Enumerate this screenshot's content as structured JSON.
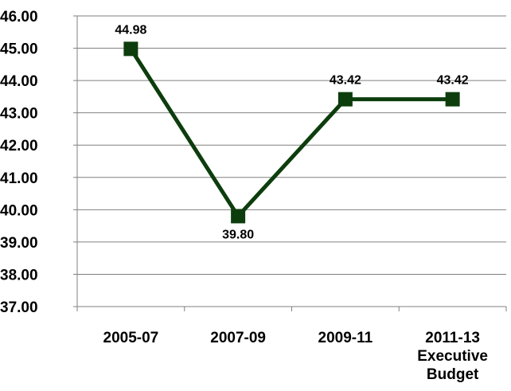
{
  "chart_data": {
    "type": "line",
    "categories": [
      [
        "2005-07"
      ],
      [
        "2007-09"
      ],
      [
        "2009-11"
      ],
      [
        "2011-13",
        "Executive",
        "Budget"
      ]
    ],
    "series": [
      {
        "values": [
          44.98,
          39.8,
          43.42,
          43.42
        ],
        "data_labels": [
          "44.98",
          "39.80",
          "43.42",
          "43.42"
        ]
      }
    ],
    "ylim": [
      37,
      46
    ],
    "y_ticks": [
      "37.00",
      "38.00",
      "39.00",
      "40.00",
      "41.00",
      "42.00",
      "43.00",
      "44.00",
      "45.00",
      "46.00"
    ],
    "grid": "horizontal",
    "legend": "none",
    "colors": {
      "line": "#0d3d0d",
      "marker": "#0d3d0d",
      "grid": "#808080",
      "axis": "#808080"
    }
  }
}
